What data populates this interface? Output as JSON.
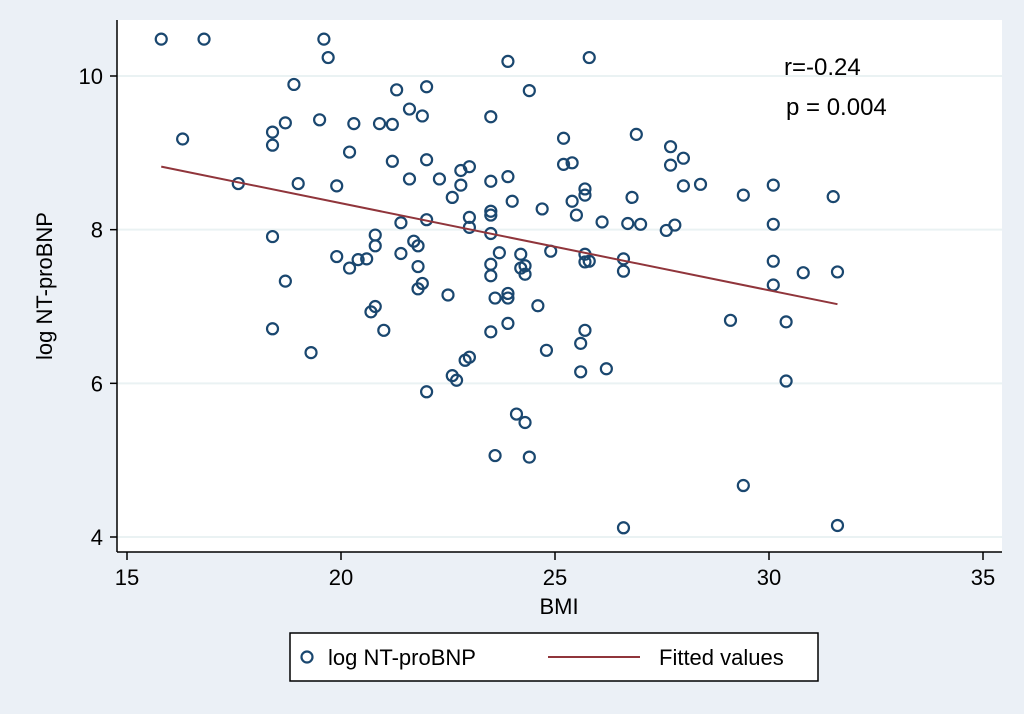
{
  "chart_data": {
    "type": "scatter",
    "xlabel": "BMI",
    "ylabel": "log NT-proBNP",
    "xlim": [
      15,
      35
    ],
    "ylim": [
      4,
      10.5
    ],
    "xticks": [
      15,
      20,
      25,
      30,
      35
    ],
    "yticks": [
      4,
      6,
      8,
      10
    ],
    "grid": true,
    "legend_position": "bottom",
    "colors": {
      "marker": "#1a476f",
      "fit": "#90353b",
      "background": "#ebf0f6",
      "plot": "#ffffff"
    },
    "annotations": {
      "r": "r=-0.24",
      "p": "p = 0.004"
    },
    "series": [
      {
        "name": "log NT-proBNP",
        "kind": "markers",
        "points": [
          [
            15.8,
            10.48
          ],
          [
            16.8,
            10.48
          ],
          [
            19.6,
            10.48
          ],
          [
            19.7,
            10.24
          ],
          [
            23.9,
            10.19
          ],
          [
            25.8,
            10.24
          ],
          [
            16.3,
            9.18
          ],
          [
            18.4,
            9.27
          ],
          [
            18.4,
            9.1
          ],
          [
            18.7,
            9.39
          ],
          [
            18.9,
            9.89
          ],
          [
            19.5,
            9.43
          ],
          [
            20.3,
            9.38
          ],
          [
            20.9,
            9.38
          ],
          [
            21.2,
            9.37
          ],
          [
            21.3,
            9.82
          ],
          [
            21.6,
            9.57
          ],
          [
            21.9,
            9.48
          ],
          [
            22.0,
            9.86
          ],
          [
            23.5,
            9.47
          ],
          [
            24.4,
            9.81
          ],
          [
            25.2,
            9.19
          ],
          [
            26.9,
            9.24
          ],
          [
            27.7,
            9.08
          ],
          [
            27.7,
            8.84
          ],
          [
            28.0,
            8.93
          ],
          [
            17.6,
            8.6
          ],
          [
            19.0,
            8.6
          ],
          [
            19.9,
            8.57
          ],
          [
            20.2,
            9.01
          ],
          [
            21.2,
            8.89
          ],
          [
            21.6,
            8.66
          ],
          [
            22.0,
            8.91
          ],
          [
            22.3,
            8.66
          ],
          [
            22.6,
            8.42
          ],
          [
            22.8,
            8.58
          ],
          [
            22.8,
            8.77
          ],
          [
            23.0,
            8.82
          ],
          [
            23.5,
            8.63
          ],
          [
            23.9,
            8.69
          ],
          [
            24.0,
            8.37
          ],
          [
            25.2,
            8.85
          ],
          [
            25.4,
            8.87
          ],
          [
            25.4,
            8.37
          ],
          [
            25.7,
            8.53
          ],
          [
            25.7,
            8.45
          ],
          [
            26.8,
            8.42
          ],
          [
            28.0,
            8.57
          ],
          [
            28.4,
            8.59
          ],
          [
            29.4,
            8.45
          ],
          [
            30.1,
            8.58
          ],
          [
            31.5,
            8.43
          ],
          [
            18.4,
            7.91
          ],
          [
            21.4,
            8.09
          ],
          [
            22.0,
            8.13
          ],
          [
            23.0,
            8.16
          ],
          [
            23.0,
            8.03
          ],
          [
            23.5,
            8.24
          ],
          [
            23.5,
            8.19
          ],
          [
            23.5,
            7.95
          ],
          [
            24.7,
            8.27
          ],
          [
            25.5,
            8.19
          ],
          [
            26.1,
            8.1
          ],
          [
            26.7,
            8.08
          ],
          [
            27.0,
            8.07
          ],
          [
            27.6,
            7.99
          ],
          [
            27.8,
            8.06
          ],
          [
            30.1,
            8.07
          ],
          [
            19.9,
            7.65
          ],
          [
            20.2,
            7.5
          ],
          [
            20.4,
            7.61
          ],
          [
            20.6,
            7.62
          ],
          [
            20.8,
            7.79
          ],
          [
            20.8,
            7.93
          ],
          [
            21.4,
            7.69
          ],
          [
            21.7,
            7.85
          ],
          [
            21.8,
            7.79
          ],
          [
            21.8,
            7.52
          ],
          [
            21.9,
            7.3
          ],
          [
            21.8,
            7.23
          ],
          [
            18.7,
            7.33
          ],
          [
            23.5,
            7.55
          ],
          [
            23.5,
            7.4
          ],
          [
            23.7,
            7.7
          ],
          [
            24.2,
            7.68
          ],
          [
            24.2,
            7.5
          ],
          [
            24.3,
            7.53
          ],
          [
            24.3,
            7.42
          ],
          [
            24.9,
            7.72
          ],
          [
            25.7,
            7.58
          ],
          [
            25.7,
            7.68
          ],
          [
            25.8,
            7.59
          ],
          [
            26.6,
            7.62
          ],
          [
            26.6,
            7.46
          ],
          [
            30.1,
            7.59
          ],
          [
            30.1,
            7.28
          ],
          [
            30.8,
            7.44
          ],
          [
            31.6,
            7.45
          ],
          [
            22.5,
            7.15
          ],
          [
            23.6,
            7.11
          ],
          [
            23.9,
            7.17
          ],
          [
            23.9,
            7.11
          ],
          [
            24.6,
            7.01
          ],
          [
            18.4,
            6.71
          ],
          [
            20.7,
            6.93
          ],
          [
            20.8,
            7.0
          ],
          [
            21.0,
            6.69
          ],
          [
            23.5,
            6.67
          ],
          [
            23.9,
            6.78
          ],
          [
            25.6,
            6.52
          ],
          [
            25.7,
            6.69
          ],
          [
            29.1,
            6.82
          ],
          [
            30.4,
            6.8
          ],
          [
            19.3,
            6.4
          ],
          [
            22.9,
            6.3
          ],
          [
            23.0,
            6.34
          ],
          [
            24.8,
            6.43
          ],
          [
            25.6,
            6.15
          ],
          [
            26.2,
            6.19
          ],
          [
            22.6,
            6.1
          ],
          [
            22.7,
            6.04
          ],
          [
            22.0,
            5.89
          ],
          [
            30.4,
            6.03
          ],
          [
            24.1,
            5.6
          ],
          [
            24.3,
            5.49
          ],
          [
            23.6,
            5.06
          ],
          [
            24.4,
            5.04
          ],
          [
            29.4,
            4.67
          ],
          [
            26.6,
            4.12
          ],
          [
            31.6,
            4.15
          ]
        ]
      },
      {
        "name": "Fitted values",
        "kind": "line",
        "points": [
          [
            15.8,
            8.82
          ],
          [
            31.6,
            7.03
          ]
        ]
      }
    ]
  },
  "legend": {
    "markers_label": "log NT-proBNP",
    "line_label": "Fitted values"
  }
}
